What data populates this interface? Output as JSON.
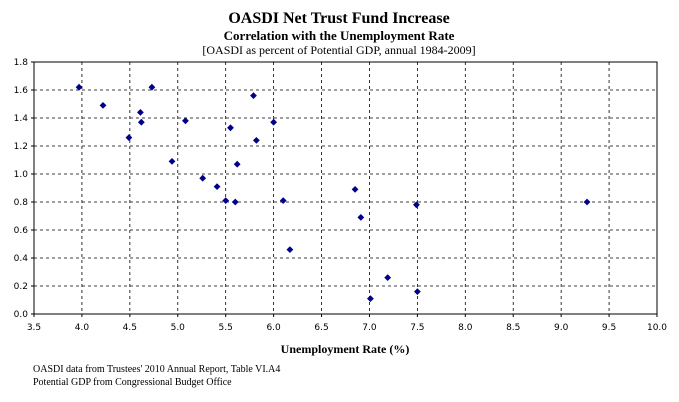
{
  "chart_data": {
    "type": "scatter",
    "title": "OASDI Net Trust Fund Increase",
    "subtitle": "Correlation with the Unemployment Rate",
    "subnote": "[OASDI as percent of Potential GDP, annual 1984-2009]",
    "xlabel": "Unemployment Rate (%)",
    "ylabel": "",
    "xlim": [
      3.5,
      10.0
    ],
    "ylim": [
      0.0,
      1.8
    ],
    "xticks": [
      "3.5",
      "4.0",
      "4.5",
      "5.0",
      "5.5",
      "6.0",
      "6.5",
      "7.0",
      "7.5",
      "8.0",
      "8.5",
      "9.0",
      "9.5",
      "10.0"
    ],
    "yticks": [
      "0.0",
      "0.2",
      "0.4",
      "0.6",
      "0.8",
      "1.0",
      "1.2",
      "1.4",
      "1.6",
      "1.8"
    ],
    "grid": "dashed",
    "marker_color": "#00008B",
    "x": [
      3.97,
      4.22,
      4.49,
      4.61,
      4.62,
      4.73,
      4.94,
      5.08,
      5.26,
      5.41,
      5.5,
      5.55,
      5.6,
      5.62,
      5.79,
      5.82,
      6.0,
      6.1,
      6.17,
      6.85,
      6.91,
      7.01,
      7.19,
      7.49,
      7.5,
      9.27
    ],
    "y": [
      1.62,
      1.49,
      1.26,
      1.44,
      1.37,
      1.62,
      1.09,
      1.38,
      0.97,
      0.91,
      0.81,
      1.33,
      0.8,
      1.07,
      1.56,
      1.24,
      1.37,
      0.81,
      0.46,
      0.89,
      0.69,
      0.11,
      0.26,
      0.78,
      0.16,
      0.8
    ]
  },
  "footer": {
    "source1": "OASDI data from Trustees' 2010 Annual Report, Table VI.A4",
    "source2": "Potential GDP from Congressional Budget Office"
  }
}
